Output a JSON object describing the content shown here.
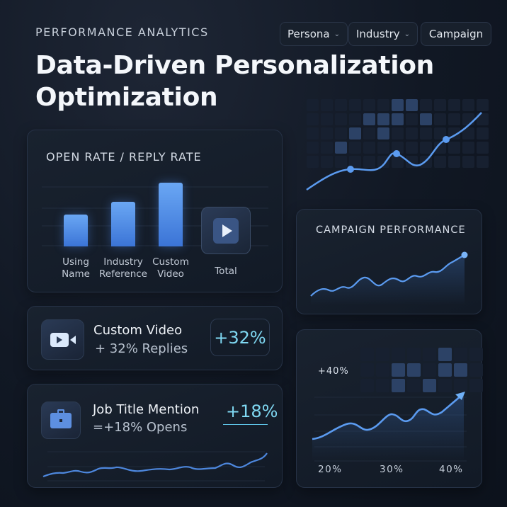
{
  "header": {
    "eyebrow": "PERFORMANCE ANALYTICS",
    "title_line1": "Data-Driven Personalization",
    "title_line2": "Optimization"
  },
  "filters": [
    {
      "label": "Persona",
      "icon": "chevron-down-icon"
    },
    {
      "label": "Industry",
      "icon": "chevron-down-icon"
    },
    {
      "label": "Campaign"
    }
  ],
  "open_rate_card": {
    "title": "OPEN RATE / REPLY RATE",
    "bars": [
      {
        "label1": "Using",
        "label2": "Name",
        "value": 0.5
      },
      {
        "label1": "Industry",
        "label2": "Reference",
        "value": 0.7
      },
      {
        "label1": "Custom",
        "label2": "Video",
        "value": 1.0
      }
    ],
    "total_label": "Total",
    "total_icon": "play-icon"
  },
  "campaign_card": {
    "title": "CAMPAIGN PERFORMANCE"
  },
  "video_card": {
    "icon": "video-camera-icon",
    "title": "Custom Video",
    "subtitle": "+ 32% Replies",
    "badge": "+32%"
  },
  "job_card": {
    "icon": "briefcase-icon",
    "title": "Job Title Mention",
    "subtitle": "=+18% Opens",
    "badge": "+18%"
  },
  "growth_card": {
    "annotation": "+40%",
    "x_labels": [
      "20%",
      "30%",
      "40%"
    ]
  },
  "colors": {
    "accent": "#5b9bf0",
    "badge": "#7fd8f2"
  }
}
